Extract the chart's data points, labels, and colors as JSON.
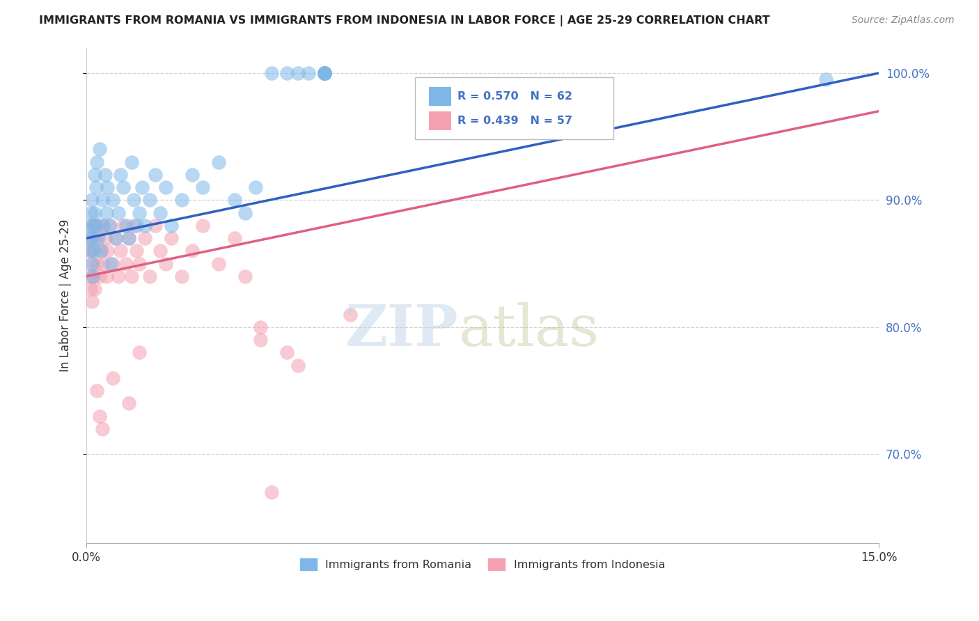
{
  "title": "IMMIGRANTS FROM ROMANIA VS IMMIGRANTS FROM INDONESIA IN LABOR FORCE | AGE 25-29 CORRELATION CHART",
  "source": "Source: ZipAtlas.com",
  "ylabel": "In Labor Force | Age 25-29",
  "legend_romania": "Immigrants from Romania",
  "legend_indonesia": "Immigrants from Indonesia",
  "r_romania": 0.57,
  "n_romania": 62,
  "r_indonesia": 0.439,
  "n_indonesia": 57,
  "color_romania": "#7EB6E8",
  "color_indonesia": "#F4A0B0",
  "line_color_romania": "#3060C0",
  "line_color_indonesia": "#E06080",
  "xmin": 0,
  "xmax": 15,
  "ymin": 63,
  "ymax": 102,
  "yticks": [
    70,
    80,
    90,
    100
  ],
  "ytick_labels": [
    "70.0%",
    "80.0%",
    "90.0%",
    "100.0%"
  ],
  "romania_x": [
    0.05,
    0.07,
    0.08,
    0.09,
    0.1,
    0.1,
    0.11,
    0.12,
    0.13,
    0.14,
    0.15,
    0.16,
    0.17,
    0.18,
    0.2,
    0.22,
    0.25,
    0.28,
    0.3,
    0.32,
    0.35,
    0.38,
    0.4,
    0.43,
    0.46,
    0.5,
    0.55,
    0.6,
    0.65,
    0.7,
    0.75,
    0.8,
    0.85,
    0.9,
    0.95,
    1.0,
    1.05,
    1.1,
    1.2,
    1.3,
    1.4,
    1.5,
    1.6,
    1.8,
    2.0,
    2.2,
    2.5,
    2.8,
    3.0,
    3.2,
    3.5,
    3.8,
    4.0,
    4.2,
    4.5,
    4.5,
    4.5,
    4.5,
    4.5,
    4.5,
    4.5,
    14.0
  ],
  "romania_y": [
    87,
    88,
    86,
    89,
    90,
    85,
    87,
    84,
    88,
    86,
    89,
    92,
    88,
    91,
    93,
    87,
    94,
    86,
    90,
    88,
    92,
    89,
    91,
    88,
    85,
    90,
    87,
    89,
    92,
    91,
    88,
    87,
    93,
    90,
    88,
    89,
    91,
    88,
    90,
    92,
    89,
    91,
    88,
    90,
    92,
    91,
    93,
    90,
    89,
    91,
    100,
    100,
    100,
    100,
    100,
    100,
    100,
    100,
    100,
    100,
    100,
    99.5
  ],
  "indonesia_x": [
    0.05,
    0.07,
    0.08,
    0.09,
    0.1,
    0.1,
    0.11,
    0.12,
    0.13,
    0.15,
    0.16,
    0.18,
    0.2,
    0.22,
    0.25,
    0.28,
    0.3,
    0.32,
    0.35,
    0.38,
    0.4,
    0.45,
    0.5,
    0.55,
    0.6,
    0.65,
    0.7,
    0.75,
    0.8,
    0.85,
    0.9,
    0.95,
    1.0,
    1.1,
    1.2,
    1.3,
    1.4,
    1.5,
    1.6,
    1.8,
    2.0,
    2.2,
    2.5,
    2.8,
    3.0,
    3.3,
    3.3,
    3.8,
    4.0,
    5.0,
    0.2,
    0.25,
    0.3,
    0.5,
    0.8,
    1.0,
    3.5
  ],
  "indonesia_y": [
    84,
    86,
    83,
    87,
    88,
    85,
    82,
    86,
    84,
    88,
    83,
    87,
    85,
    88,
    84,
    86,
    88,
    85,
    87,
    84,
    86,
    88,
    85,
    87,
    84,
    86,
    88,
    85,
    87,
    84,
    88,
    86,
    85,
    87,
    84,
    88,
    86,
    85,
    87,
    84,
    86,
    88,
    85,
    87,
    84,
    80,
    79,
    78,
    77,
    81,
    75,
    73,
    72,
    76,
    74,
    78,
    67
  ]
}
